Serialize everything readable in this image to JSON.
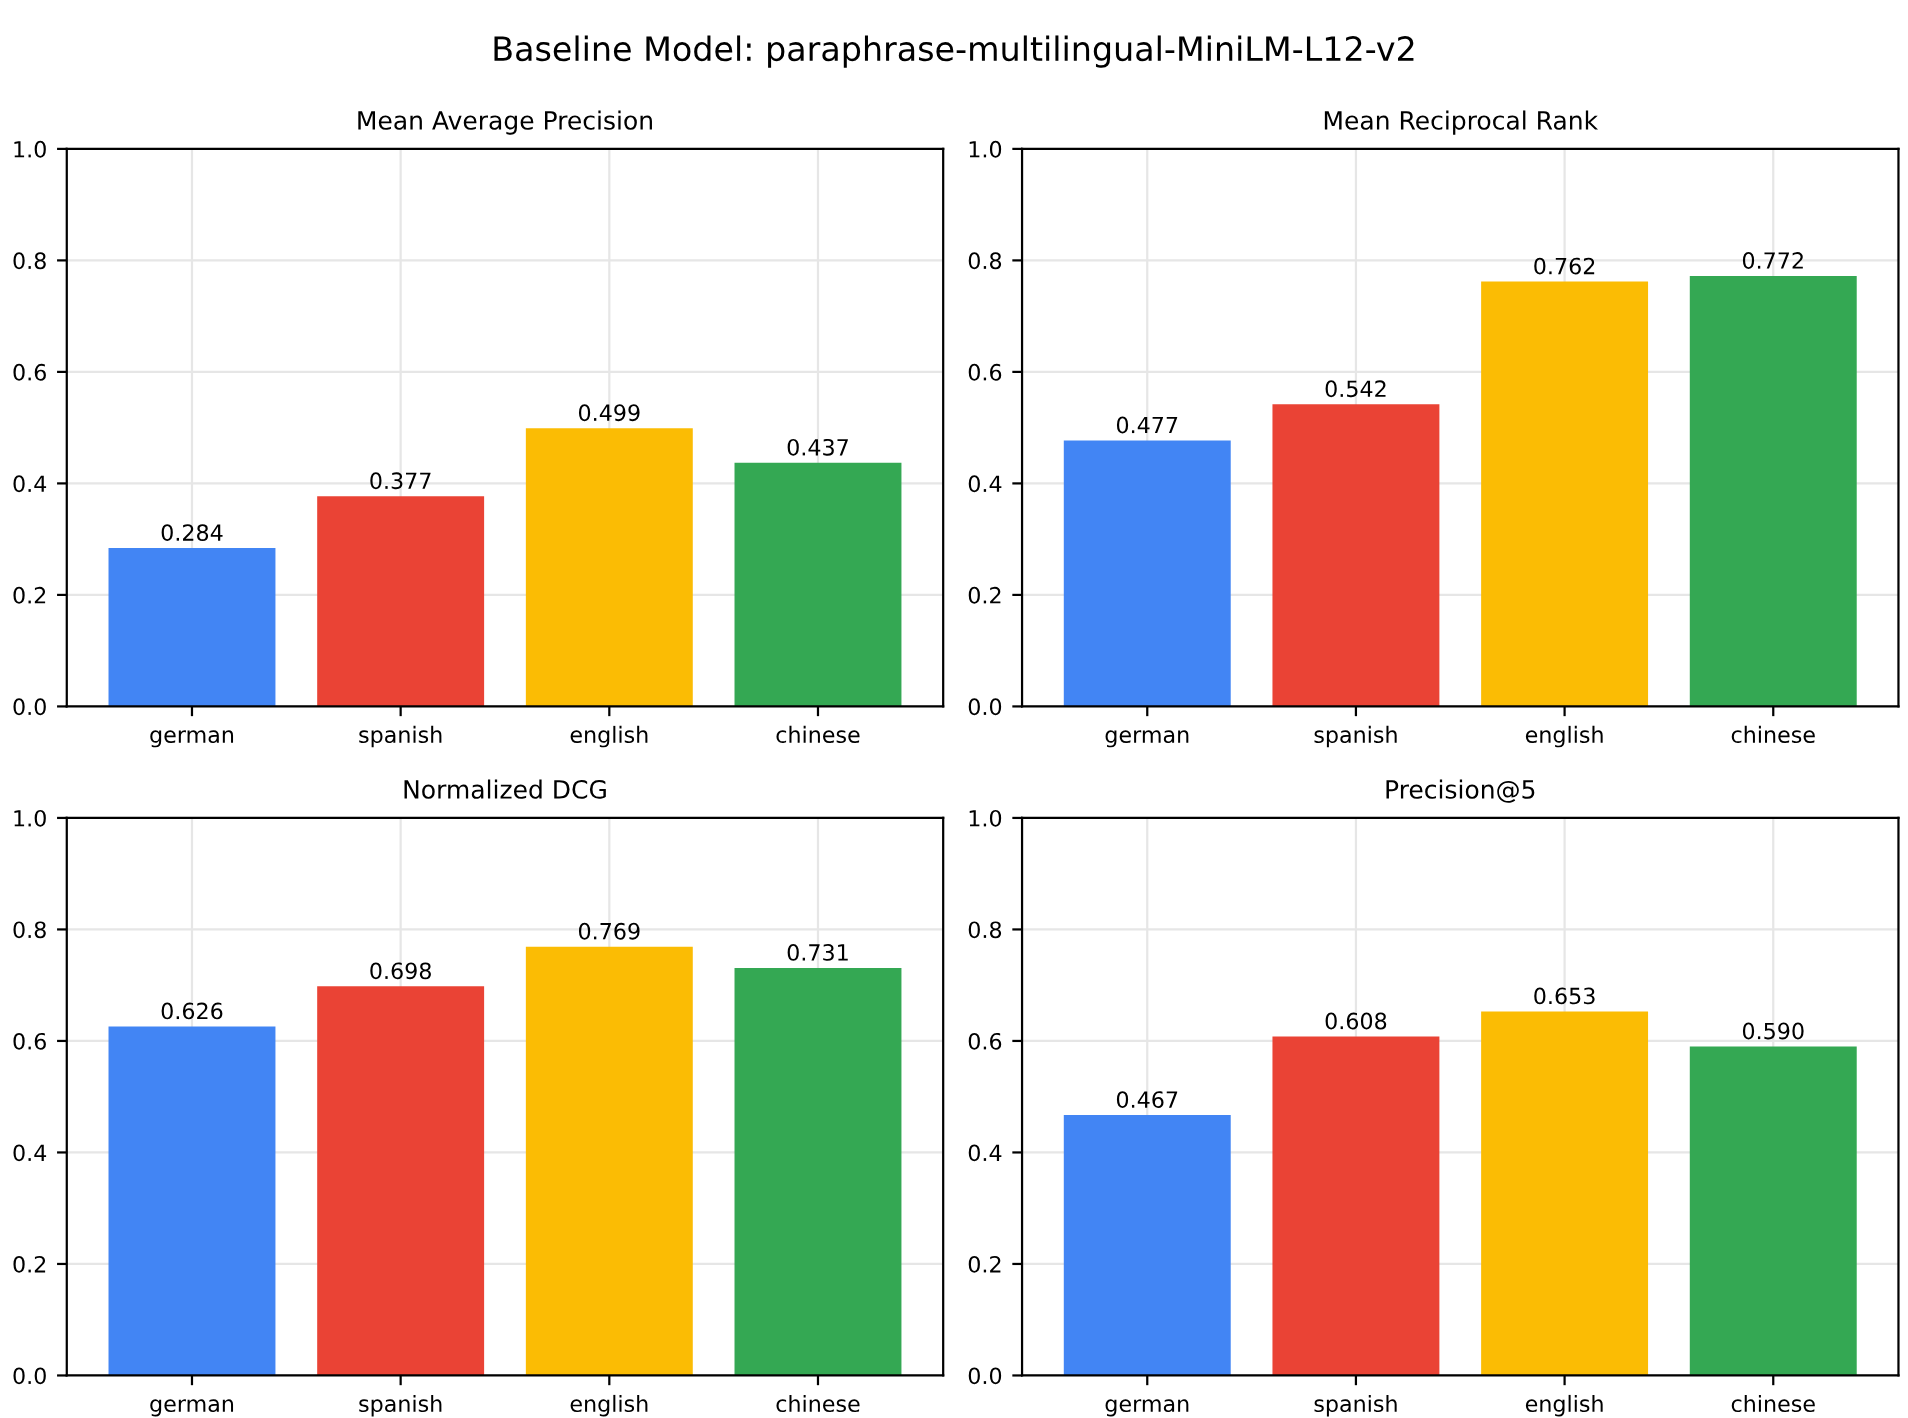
{
  "chart_data": [
    {
      "type": "bar",
      "title": "Mean Average Precision",
      "annotations": [
        "Baseline Model: paraphrase-multilingual-MiniLM-L12-v2"
      ],
      "categories": [
        "german",
        "spanish",
        "english",
        "chinese"
      ],
      "values": [
        0.284,
        0.377,
        0.499,
        0.437
      ],
      "value_labels": [
        "0.284",
        "0.377",
        "0.499",
        "0.437"
      ],
      "colors": [
        "#4285f4",
        "#ea4335",
        "#fbbc04",
        "#34a853"
      ],
      "ylim": [
        0,
        1
      ],
      "yticks": [
        {
          "value": 0,
          "label": "0.0"
        },
        {
          "value": 0.2,
          "label": "0.2"
        },
        {
          "value": 0.4,
          "label": "0.4"
        },
        {
          "value": 0.6,
          "label": "0.6"
        },
        {
          "value": 0.8,
          "label": "0.8"
        },
        {
          "value": 1,
          "label": "1.0"
        }
      ],
      "grid": true
    },
    {
      "type": "bar",
      "title": "Mean Reciprocal Rank",
      "categories": [
        "german",
        "spanish",
        "english",
        "chinese"
      ],
      "values": [
        0.477,
        0.542,
        0.762,
        0.772
      ],
      "value_labels": [
        "0.477",
        "0.542",
        "0.762",
        "0.772"
      ],
      "colors": [
        "#4285f4",
        "#ea4335",
        "#fbbc04",
        "#34a853"
      ],
      "ylim": [
        0,
        1
      ],
      "yticks": [
        {
          "value": 0,
          "label": "0.0"
        },
        {
          "value": 0.2,
          "label": "0.2"
        },
        {
          "value": 0.4,
          "label": "0.4"
        },
        {
          "value": 0.6,
          "label": "0.6"
        },
        {
          "value": 0.8,
          "label": "0.8"
        },
        {
          "value": 1,
          "label": "1.0"
        }
      ],
      "grid": true
    },
    {
      "type": "bar",
      "title": "Normalized DCG",
      "categories": [
        "german",
        "spanish",
        "english",
        "chinese"
      ],
      "values": [
        0.626,
        0.698,
        0.769,
        0.731
      ],
      "value_labels": [
        "0.626",
        "0.698",
        "0.769",
        "0.731"
      ],
      "colors": [
        "#4285f4",
        "#ea4335",
        "#fbbc04",
        "#34a853"
      ],
      "ylim": [
        0,
        1
      ],
      "yticks": [
        {
          "value": 0,
          "label": "0.0"
        },
        {
          "value": 0.2,
          "label": "0.2"
        },
        {
          "value": 0.4,
          "label": "0.4"
        },
        {
          "value": 0.6,
          "label": "0.6"
        },
        {
          "value": 0.8,
          "label": "0.8"
        },
        {
          "value": 1,
          "label": "1.0"
        }
      ],
      "grid": true
    },
    {
      "type": "bar",
      "title": "Precision@5",
      "categories": [
        "german",
        "spanish",
        "english",
        "chinese"
      ],
      "values": [
        0.467,
        0.608,
        0.653,
        0.59
      ],
      "value_labels": [
        "0.467",
        "0.608",
        "0.653",
        "0.590"
      ],
      "colors": [
        "#4285f4",
        "#ea4335",
        "#fbbc04",
        "#34a853"
      ],
      "ylim": [
        0,
        1
      ],
      "yticks": [
        {
          "value": 0,
          "label": "0.0"
        },
        {
          "value": 0.2,
          "label": "0.2"
        },
        {
          "value": 0.4,
          "label": "0.4"
        },
        {
          "value": 0.6,
          "label": "0.6"
        },
        {
          "value": 0.8,
          "label": "0.8"
        },
        {
          "value": 1,
          "label": "1.0"
        }
      ],
      "grid": true
    }
  ]
}
